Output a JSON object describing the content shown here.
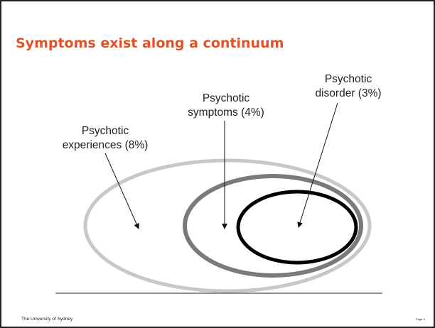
{
  "title": "Symptoms exist along a continuum",
  "nodes": [
    {
      "label": [
        "Psychotic",
        "experiences (8%)"
      ]
    },
    {
      "label": [
        "Psychotic",
        "symptoms (4%)"
      ]
    },
    {
      "label": [
        "Psychotic",
        "disorder (3%)"
      ]
    }
  ],
  "footer": {
    "left": "The University of Sydney",
    "right": "Page 9"
  }
}
